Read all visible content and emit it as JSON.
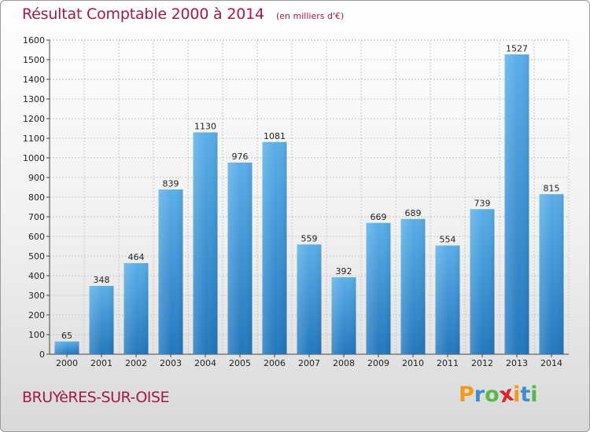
{
  "header": {
    "title": "Résultat Comptable 2000 à 2014",
    "unit": "(en milliers d'€)"
  },
  "footer": {
    "commune": "BRUYèRES-SUR-OISE",
    "brand": "Proxiti",
    "brand_letters": [
      {
        "ch": "P",
        "color": "#f39a1a"
      },
      {
        "ch": "r",
        "color": "#3a8fd4"
      },
      {
        "ch": "o",
        "color": "#59b847"
      },
      {
        "ch": "x",
        "color": "#e2232a"
      },
      {
        "ch": "i",
        "color": "#f39a1a"
      },
      {
        "ch": "t",
        "color": "#3a8fd4"
      },
      {
        "ch": "i",
        "color": "#59b847"
      }
    ]
  },
  "colors": {
    "title": "#a3194a",
    "bar_top": "#5aaee8",
    "bar_bottom": "#2277bd",
    "grid": "#c8c8c8"
  },
  "chart_data": {
    "type": "bar",
    "title": "Résultat Comptable 2000 à 2014",
    "subtitle": "(en milliers d'€)",
    "xlabel": "",
    "ylabel": "",
    "categories": [
      "2000",
      "2001",
      "2002",
      "2003",
      "2004",
      "2005",
      "2006",
      "2007",
      "2008",
      "2009",
      "2010",
      "2011",
      "2012",
      "2013",
      "2014"
    ],
    "values": [
      65,
      348,
      464,
      839,
      1130,
      976,
      1081,
      559,
      392,
      669,
      689,
      554,
      739,
      1527,
      815
    ],
    "ylim": [
      0,
      1600
    ],
    "yticks": [
      0,
      100,
      200,
      300,
      400,
      500,
      600,
      700,
      800,
      900,
      1000,
      1100,
      1200,
      1300,
      1400,
      1500,
      1600
    ],
    "grid": true,
    "data_labels": true
  }
}
